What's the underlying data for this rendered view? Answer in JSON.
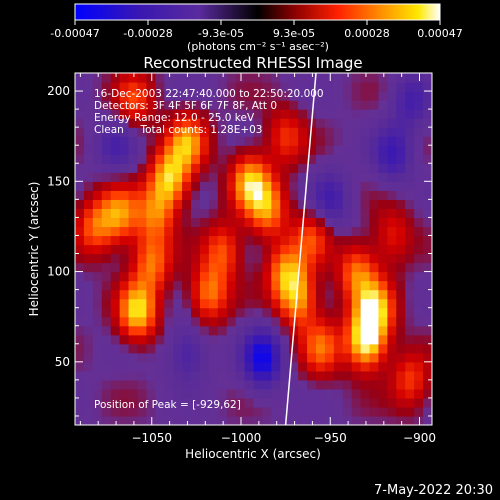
{
  "colorbar": {
    "ticks": [
      "-0.00047",
      "-0.00028",
      "-9.3e-05",
      "9.3e-05",
      "0.00028",
      "0.00047"
    ],
    "units": "(photons cm⁻² s⁻¹ asec⁻²)"
  },
  "chart_data": {
    "type": "heatmap",
    "title": "Reconstructed RHESSI Image",
    "xlabel": "Heliocentric X (arcsec)",
    "ylabel": "Heliocentric Y (arcsec)",
    "xlim": [
      -1093,
      -893
    ],
    "ylim": [
      15,
      210
    ],
    "x_ticks": [
      -1050,
      -1000,
      -950,
      -900
    ],
    "x_tick_labels": [
      "−1050",
      "−1000",
      "−950",
      "−900"
    ],
    "y_ticks": [
      50,
      100,
      150,
      200
    ],
    "y_tick_labels": [
      "50",
      "100",
      "150",
      "200"
    ],
    "value_range": [
      -0.00047,
      0.00047
    ],
    "colormap": [
      "#0000ff",
      "#4b1fa0",
      "#62309a",
      "#b00000",
      "#ff2000",
      "#ff8000",
      "#ffe000",
      "#ffffff"
    ],
    "hot_spots": [
      {
        "x": -1068,
        "y": 132,
        "v": 0.0003
      },
      {
        "x": -1082,
        "y": 125,
        "v": 0.00025
      },
      {
        "x": -1058,
        "y": 78,
        "v": 0.0004
      },
      {
        "x": -1050,
        "y": 105,
        "v": 0.00028
      },
      {
        "x": -1060,
        "y": 195,
        "v": 0.00022
      },
      {
        "x": -1040,
        "y": 152,
        "v": 0.00038
      },
      {
        "x": -1030,
        "y": 172,
        "v": 0.00032
      },
      {
        "x": -1048,
        "y": 132,
        "v": 0.00026
      },
      {
        "x": -1018,
        "y": 88,
        "v": 0.0003
      },
      {
        "x": -1010,
        "y": 112,
        "v": 0.00024
      },
      {
        "x": -995,
        "y": 150,
        "v": 0.00036
      },
      {
        "x": -985,
        "y": 135,
        "v": 0.0003
      },
      {
        "x": -975,
        "y": 175,
        "v": 0.0002
      },
      {
        "x": -975,
        "y": 100,
        "v": 0.0003
      },
      {
        "x": -968,
        "y": 85,
        "v": 0.00032
      },
      {
        "x": -955,
        "y": 58,
        "v": 0.00026
      },
      {
        "x": -960,
        "y": 120,
        "v": 0.00022
      },
      {
        "x": -930,
        "y": 62,
        "v": 0.00047
      },
      {
        "x": -925,
        "y": 80,
        "v": 0.00036
      },
      {
        "x": -935,
        "y": 100,
        "v": 0.00028
      },
      {
        "x": -905,
        "y": 40,
        "v": 0.00022
      },
      {
        "x": -915,
        "y": 120,
        "v": 0.00018
      }
    ],
    "cold_spots": [
      {
        "x": -988,
        "y": 52,
        "v": -0.0004
      },
      {
        "x": -1030,
        "y": 55,
        "v": -0.0002
      },
      {
        "x": -950,
        "y": 140,
        "v": -0.00022
      },
      {
        "x": -915,
        "y": 165,
        "v": -0.00024
      },
      {
        "x": -905,
        "y": 195,
        "v": -0.0002
      },
      {
        "x": -1070,
        "y": 170,
        "v": -0.00018
      }
    ],
    "limb_line": {
      "x_at_ymin": -975,
      "x_at_ymax": -958,
      "color": "#ffffff"
    },
    "annotations": [
      "16-Dec-2003 22:47:40.000 to 22:50:20.000",
      "Detectors: 3F 4F 5F 6F 7F 8F, Att 0",
      "Energy Range: 12.0 - 25.0 keV",
      "Clean     Total counts: 1.28E+03"
    ],
    "peak_label": "Position of Peak = [-929,62]",
    "grid": false
  },
  "footer": {
    "timestamp": "7-May-2022 20:30"
  }
}
